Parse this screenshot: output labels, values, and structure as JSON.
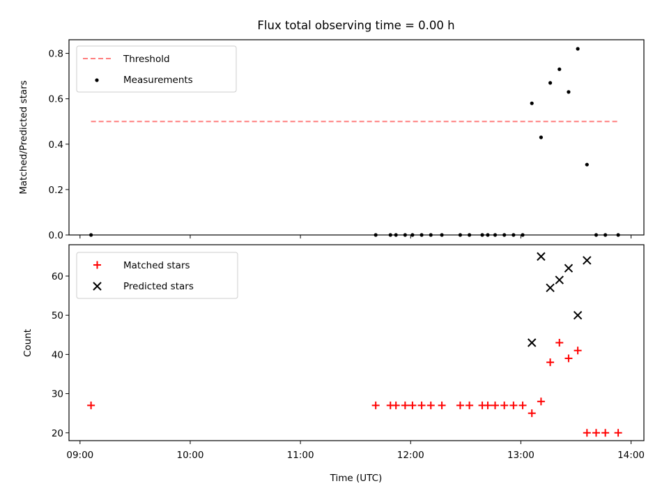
{
  "chart_data": [
    {
      "type": "scatter",
      "title": "Flux total observing time = 0.00 h",
      "ylabel": "Matched/Predicted stars",
      "xlabel": "",
      "xlim": [
        "08:54",
        "14:07"
      ],
      "ylim": [
        0,
        0.86
      ],
      "yticks": [
        "0.0",
        "0.2",
        "0.4",
        "0.6",
        "0.8"
      ],
      "legend_position": "top-left",
      "threshold": {
        "name": "Threshold",
        "value": 0.5,
        "x_range": [
          "09:06",
          "13:53"
        ],
        "color": "#ff7f7f"
      },
      "series": [
        {
          "name": "Measurements",
          "color": "#000000",
          "points": [
            [
              "09:06",
              0
            ],
            [
              "11:41",
              0
            ],
            [
              "11:49",
              0
            ],
            [
              "11:52",
              0
            ],
            [
              "11:57",
              0
            ],
            [
              "12:01",
              0
            ],
            [
              "12:06",
              0
            ],
            [
              "12:11",
              0
            ],
            [
              "12:17",
              0
            ],
            [
              "12:27",
              0
            ],
            [
              "12:32",
              0
            ],
            [
              "12:39",
              0
            ],
            [
              "12:42",
              0
            ],
            [
              "12:46",
              0
            ],
            [
              "12:51",
              0
            ],
            [
              "12:56",
              0
            ],
            [
              "13:01",
              0
            ],
            [
              "13:06",
              0.58
            ],
            [
              "13:11",
              0.43
            ],
            [
              "13:16",
              0.67
            ],
            [
              "13:21",
              0.73
            ],
            [
              "13:26",
              0.63
            ],
            [
              "13:31",
              0.82
            ],
            [
              "13:36",
              0.31
            ],
            [
              "13:41",
              0
            ],
            [
              "13:46",
              0
            ],
            [
              "13:53",
              0
            ]
          ]
        }
      ]
    },
    {
      "type": "scatter",
      "title": "",
      "ylabel": "Count",
      "xlabel": "Time (UTC)",
      "xlim": [
        "08:54",
        "14:07"
      ],
      "ylim": [
        18,
        68
      ],
      "yticks": [
        "20",
        "30",
        "40",
        "50",
        "60"
      ],
      "xticks": [
        "09:00",
        "10:00",
        "11:00",
        "12:00",
        "13:00",
        "14:00"
      ],
      "legend_position": "top-left",
      "series": [
        {
          "name": "Matched stars",
          "color": "#ff0000",
          "marker": "+",
          "points": [
            [
              "09:06",
              27
            ],
            [
              "11:41",
              27
            ],
            [
              "11:49",
              27
            ],
            [
              "11:52",
              27
            ],
            [
              "11:57",
              27
            ],
            [
              "12:01",
              27
            ],
            [
              "12:06",
              27
            ],
            [
              "12:11",
              27
            ],
            [
              "12:17",
              27
            ],
            [
              "12:27",
              27
            ],
            [
              "12:32",
              27
            ],
            [
              "12:39",
              27
            ],
            [
              "12:42",
              27
            ],
            [
              "12:46",
              27
            ],
            [
              "12:51",
              27
            ],
            [
              "12:56",
              27
            ],
            [
              "13:01",
              27
            ],
            [
              "13:06",
              25
            ],
            [
              "13:11",
              28
            ],
            [
              "13:16",
              38
            ],
            [
              "13:21",
              43
            ],
            [
              "13:26",
              39
            ],
            [
              "13:31",
              41
            ],
            [
              "13:36",
              20
            ],
            [
              "13:41",
              20
            ],
            [
              "13:46",
              20
            ],
            [
              "13:53",
              20
            ]
          ]
        },
        {
          "name": "Predicted stars",
          "color": "#000000",
          "marker": "x",
          "points": [
            [
              "13:06",
              43
            ],
            [
              "13:11",
              65
            ],
            [
              "13:16",
              57
            ],
            [
              "13:21",
              59
            ],
            [
              "13:26",
              62
            ],
            [
              "13:31",
              50
            ],
            [
              "13:36",
              64
            ]
          ]
        }
      ]
    }
  ]
}
